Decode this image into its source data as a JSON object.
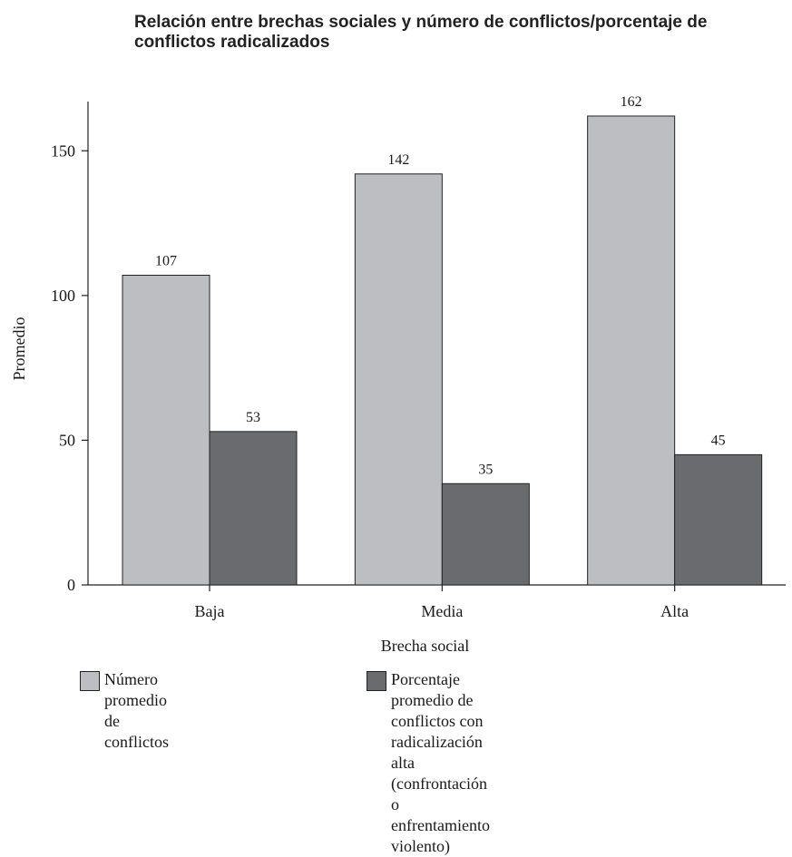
{
  "chart_data": {
    "type": "bar",
    "title": "Relación entre brechas sociales y número de conflictos/porcentaje de conflictos radicalizados",
    "xlabel": "Brecha social",
    "ylabel": "Promedio",
    "categories": [
      "Baja",
      "Media",
      "Alta"
    ],
    "ylim": [
      0,
      167
    ],
    "yticks": [
      0,
      50,
      100,
      150
    ],
    "grid": false,
    "legend_position": "bottom",
    "series": [
      {
        "name": "Número promedio de conflictos",
        "values": [
          107,
          142,
          162
        ],
        "labels": [
          "107",
          "142",
          "162"
        ],
        "color": "#bdbec2"
      },
      {
        "name": "Porcentaje promedio de conflictos con radicalización alta (confrontación o enfrentamiento violento)",
        "name_lines": [
          "Porcentaje promedio de conflictos con radicalización",
          "alta (confrontación o enfrentamiento violento)"
        ],
        "values": [
          53,
          35,
          45
        ],
        "labels": [
          "53",
          "35",
          "45"
        ],
        "color": "#6a6b6f"
      }
    ]
  }
}
